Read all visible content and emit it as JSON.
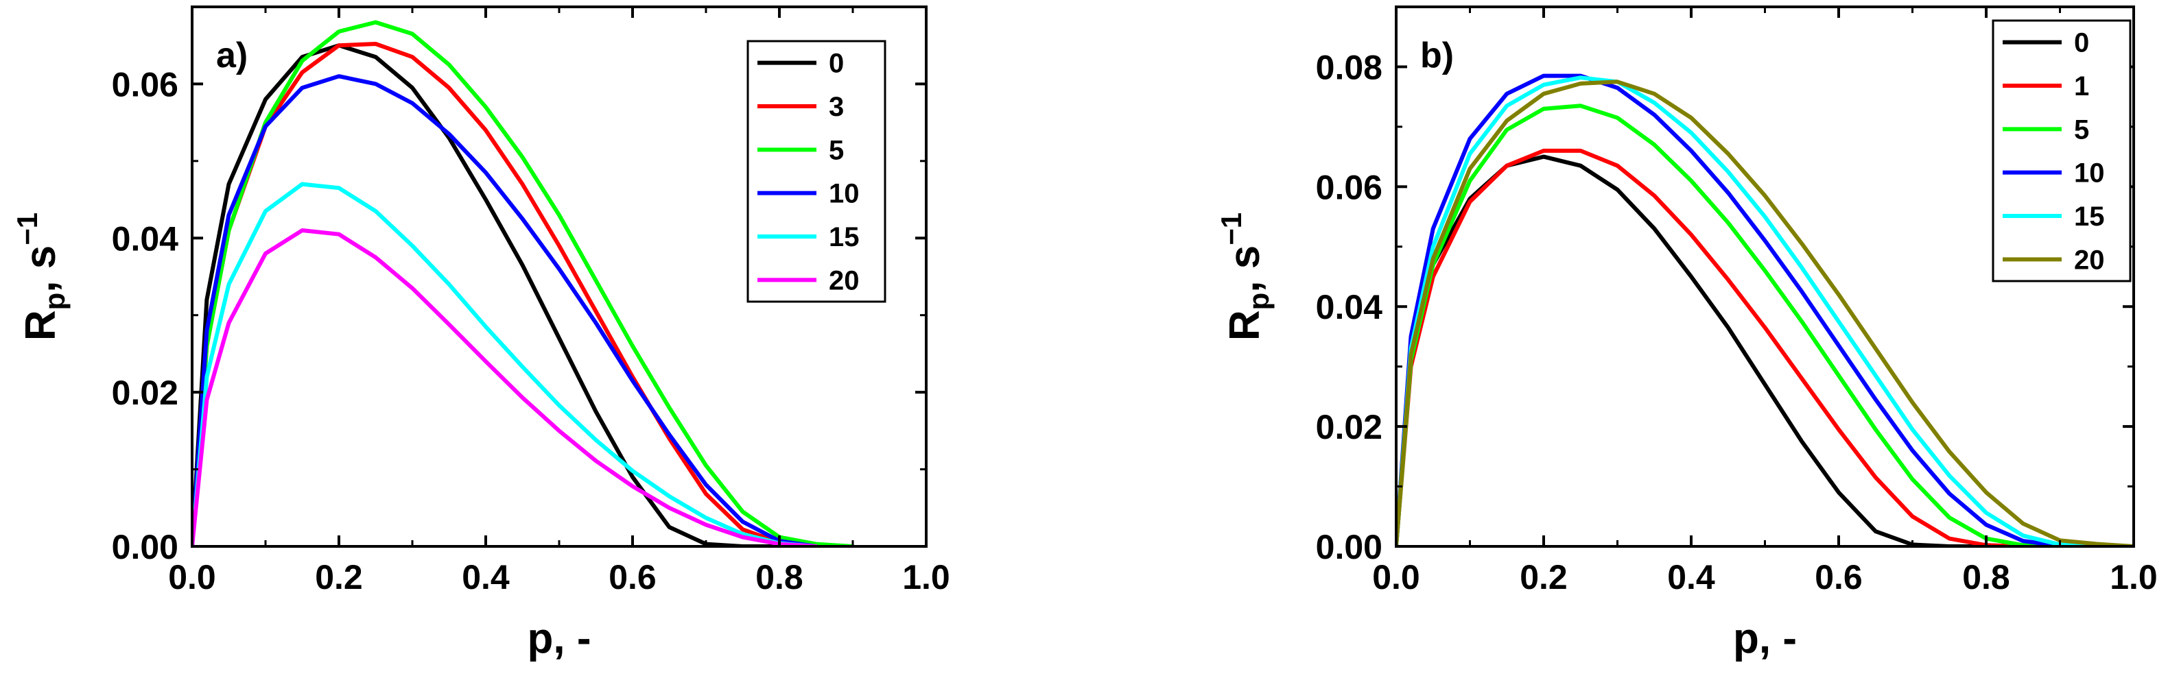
{
  "chart_data": [
    {
      "type": "line",
      "panel_label": "a)",
      "xlabel": "p, -",
      "ylabel_main": "R",
      "ylabel_sub": "p",
      "ylabel_rest": ", s",
      "ylabel_sup": "−1",
      "xlim": [
        0.0,
        1.0
      ],
      "ylim": [
        0.0,
        0.07
      ],
      "xticks": [
        "0.0",
        "0.2",
        "0.4",
        "0.6",
        "0.8",
        "1.0"
      ],
      "yticks": [
        "0.00",
        "0.02",
        "0.04",
        "0.06"
      ],
      "legend_position": "top-right",
      "series": [
        {
          "name": "0",
          "color": "#000000",
          "x": [
            0.0,
            0.02,
            0.05,
            0.1,
            0.15,
            0.2,
            0.25,
            0.3,
            0.35,
            0.4,
            0.45,
            0.5,
            0.55,
            0.6,
            0.65,
            0.7,
            0.75,
            0.8
          ],
          "y": [
            0.0,
            0.032,
            0.047,
            0.058,
            0.0635,
            0.065,
            0.0635,
            0.0595,
            0.053,
            0.045,
            0.0365,
            0.027,
            0.0175,
            0.009,
            0.0025,
            0.0003,
            0.0,
            0.0
          ]
        },
        {
          "name": "3",
          "color": "#ff0000",
          "x": [
            0.0,
            0.02,
            0.05,
            0.1,
            0.15,
            0.2,
            0.25,
            0.3,
            0.35,
            0.4,
            0.45,
            0.5,
            0.55,
            0.6,
            0.65,
            0.7,
            0.75,
            0.8,
            0.85,
            0.9
          ],
          "y": [
            0.0,
            0.026,
            0.041,
            0.0545,
            0.0615,
            0.065,
            0.0652,
            0.0635,
            0.0595,
            0.054,
            0.047,
            0.039,
            0.0305,
            0.022,
            0.014,
            0.0068,
            0.0022,
            0.0005,
            0.0,
            0.0
          ]
        },
        {
          "name": "5",
          "color": "#00ff00",
          "x": [
            0.0,
            0.02,
            0.05,
            0.1,
            0.15,
            0.2,
            0.25,
            0.3,
            0.35,
            0.4,
            0.45,
            0.5,
            0.55,
            0.6,
            0.65,
            0.7,
            0.75,
            0.8,
            0.85,
            0.9
          ],
          "y": [
            0.0,
            0.026,
            0.041,
            0.055,
            0.063,
            0.0668,
            0.068,
            0.0665,
            0.0625,
            0.057,
            0.0505,
            0.043,
            0.0345,
            0.026,
            0.018,
            0.0105,
            0.0045,
            0.0012,
            0.0003,
            0.0
          ]
        },
        {
          "name": "10",
          "color": "#0000ff",
          "x": [
            0.0,
            0.02,
            0.05,
            0.1,
            0.15,
            0.2,
            0.25,
            0.3,
            0.35,
            0.4,
            0.45,
            0.5,
            0.55,
            0.6,
            0.65,
            0.7,
            0.75,
            0.8,
            0.85
          ],
          "y": [
            0.0,
            0.028,
            0.043,
            0.0545,
            0.0595,
            0.061,
            0.06,
            0.0575,
            0.0535,
            0.0485,
            0.0425,
            0.036,
            0.029,
            0.0215,
            0.0145,
            0.008,
            0.0032,
            0.0007,
            0.0
          ]
        },
        {
          "name": "15",
          "color": "#00ffff",
          "x": [
            0.0,
            0.02,
            0.05,
            0.1,
            0.15,
            0.2,
            0.25,
            0.3,
            0.35,
            0.4,
            0.45,
            0.5,
            0.55,
            0.6,
            0.65,
            0.7,
            0.75,
            0.8,
            0.85
          ],
          "y": [
            0.0,
            0.022,
            0.034,
            0.0435,
            0.047,
            0.0465,
            0.0435,
            0.039,
            0.034,
            0.0285,
            0.0233,
            0.0183,
            0.0138,
            0.0098,
            0.0065,
            0.0037,
            0.0016,
            0.0004,
            0.0
          ]
        },
        {
          "name": "20",
          "color": "#ff00ff",
          "x": [
            0.0,
            0.02,
            0.05,
            0.1,
            0.15,
            0.2,
            0.25,
            0.3,
            0.35,
            0.4,
            0.45,
            0.5,
            0.55,
            0.6,
            0.65,
            0.7,
            0.75,
            0.8,
            0.85
          ],
          "y": [
            0.0,
            0.019,
            0.029,
            0.038,
            0.041,
            0.0405,
            0.0375,
            0.0335,
            0.0288,
            0.024,
            0.0193,
            0.015,
            0.0111,
            0.0078,
            0.005,
            0.0028,
            0.0012,
            0.0003,
            0.0
          ]
        }
      ]
    },
    {
      "type": "line",
      "panel_label": "b)",
      "xlabel": "p, -",
      "ylabel_main": "R",
      "ylabel_sub": "p",
      "ylabel_rest": ", s",
      "ylabel_sup": "−1",
      "xlim": [
        0.0,
        1.0
      ],
      "ylim": [
        0.0,
        0.09
      ],
      "xticks": [
        "0.0",
        "0.2",
        "0.4",
        "0.6",
        "0.8",
        "1.0"
      ],
      "yticks": [
        "0.00",
        "0.02",
        "0.04",
        "0.06",
        "0.08"
      ],
      "legend_position": "top-right",
      "series": [
        {
          "name": "0",
          "color": "#000000",
          "x": [
            0.0,
            0.02,
            0.05,
            0.1,
            0.15,
            0.2,
            0.25,
            0.3,
            0.35,
            0.4,
            0.45,
            0.5,
            0.55,
            0.6,
            0.65,
            0.7,
            0.75,
            0.8
          ],
          "y": [
            0.0,
            0.032,
            0.047,
            0.058,
            0.0635,
            0.065,
            0.0635,
            0.0595,
            0.053,
            0.045,
            0.0365,
            0.027,
            0.0175,
            0.009,
            0.0025,
            0.0003,
            0.0,
            0.0
          ]
        },
        {
          "name": "1",
          "color": "#ff0000",
          "x": [
            0.0,
            0.02,
            0.05,
            0.1,
            0.15,
            0.2,
            0.25,
            0.3,
            0.35,
            0.4,
            0.45,
            0.5,
            0.55,
            0.6,
            0.65,
            0.7,
            0.75,
            0.8,
            0.85
          ],
          "y": [
            0.0,
            0.03,
            0.045,
            0.0575,
            0.0635,
            0.066,
            0.066,
            0.0635,
            0.0585,
            0.052,
            0.0445,
            0.0365,
            0.028,
            0.0195,
            0.0115,
            0.005,
            0.0013,
            0.0002,
            0.0
          ]
        },
        {
          "name": "5",
          "color": "#00ff00",
          "x": [
            0.0,
            0.02,
            0.05,
            0.1,
            0.15,
            0.2,
            0.25,
            0.3,
            0.35,
            0.4,
            0.45,
            0.5,
            0.55,
            0.6,
            0.65,
            0.7,
            0.75,
            0.8,
            0.85,
            0.9
          ],
          "y": [
            0.0,
            0.031,
            0.047,
            0.061,
            0.0695,
            0.073,
            0.0735,
            0.0715,
            0.067,
            0.061,
            0.054,
            0.046,
            0.0375,
            0.0285,
            0.0195,
            0.0112,
            0.0048,
            0.0013,
            0.0002,
            0.0
          ]
        },
        {
          "name": "10",
          "color": "#0000ff",
          "x": [
            0.0,
            0.02,
            0.05,
            0.1,
            0.15,
            0.2,
            0.25,
            0.3,
            0.35,
            0.4,
            0.45,
            0.5,
            0.55,
            0.6,
            0.65,
            0.7,
            0.75,
            0.8,
            0.85,
            0.9,
            0.95
          ],
          "y": [
            0.0,
            0.035,
            0.053,
            0.068,
            0.0755,
            0.0785,
            0.0785,
            0.0765,
            0.072,
            0.066,
            0.059,
            0.051,
            0.0425,
            0.0335,
            0.0245,
            0.016,
            0.0088,
            0.0036,
            0.0009,
            0.0001,
            0.0
          ]
        },
        {
          "name": "15",
          "color": "#00ffff",
          "x": [
            0.0,
            0.02,
            0.05,
            0.1,
            0.15,
            0.2,
            0.25,
            0.3,
            0.35,
            0.4,
            0.45,
            0.5,
            0.55,
            0.6,
            0.65,
            0.7,
            0.75,
            0.8,
            0.85,
            0.9,
            0.95
          ],
          "y": [
            0.0,
            0.033,
            0.05,
            0.0655,
            0.0735,
            0.077,
            0.0782,
            0.0775,
            0.074,
            0.069,
            0.0625,
            0.055,
            0.0465,
            0.0375,
            0.0285,
            0.0195,
            0.0118,
            0.0056,
            0.0018,
            0.0003,
            0.0
          ]
        },
        {
          "name": "20",
          "color": "#808000",
          "x": [
            0.0,
            0.02,
            0.05,
            0.1,
            0.15,
            0.2,
            0.25,
            0.3,
            0.35,
            0.4,
            0.45,
            0.5,
            0.55,
            0.6,
            0.65,
            0.7,
            0.75,
            0.8,
            0.85,
            0.9,
            0.95,
            1.0
          ],
          "y": [
            0.0,
            0.032,
            0.048,
            0.063,
            0.071,
            0.0755,
            0.0772,
            0.0775,
            0.0755,
            0.0715,
            0.0655,
            0.0585,
            0.0505,
            0.042,
            0.033,
            0.024,
            0.0158,
            0.009,
            0.0038,
            0.001,
            0.0004,
            0.0
          ]
        }
      ]
    }
  ]
}
